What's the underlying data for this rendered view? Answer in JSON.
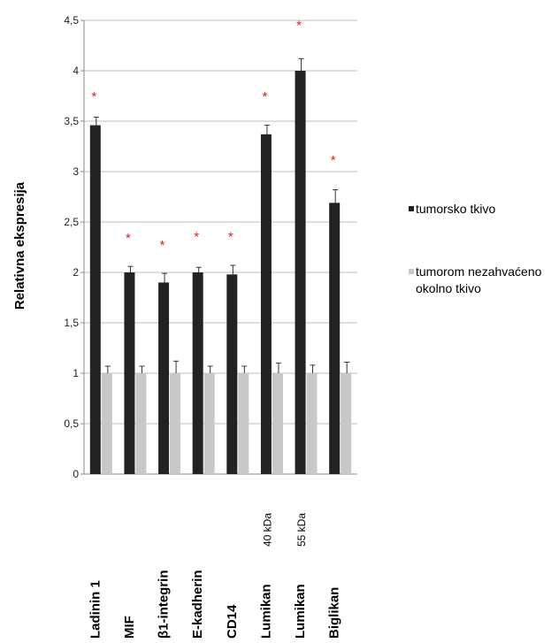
{
  "chart_data": {
    "type": "bar",
    "ylabel": "Relativna ekspresija",
    "xlabel": "",
    "ylim": [
      0,
      4.5
    ],
    "yticks": [
      "0",
      "0,5",
      "1",
      "1,5",
      "2",
      "2,5",
      "3",
      "3,5",
      "4",
      "4,5"
    ],
    "grid": true,
    "legend_position": "right",
    "categories": [
      {
        "label": "Ladinin 1",
        "sub": ""
      },
      {
        "label": "MIF",
        "sub": ""
      },
      {
        "label": "β1-integrin",
        "sub": ""
      },
      {
        "label": "E-kadherin",
        "sub": ""
      },
      {
        "label": "CD14",
        "sub": ""
      },
      {
        "label": "Lumikan",
        "sub": "40 kDa"
      },
      {
        "label": "Lumikan",
        "sub": "55 kDa"
      },
      {
        "label": "Biglikan",
        "sub": ""
      }
    ],
    "series": [
      {
        "name": "tumorsko tkivo",
        "color": "#222222",
        "values": [
          3.46,
          2.0,
          1.9,
          2.0,
          1.98,
          3.37,
          4.0,
          2.69
        ],
        "errors": [
          0.08,
          0.06,
          0.09,
          0.05,
          0.09,
          0.09,
          0.12,
          0.13
        ]
      },
      {
        "name": "tumorom nezahvaćeno okolno tkivo",
        "name_lines": [
          "tumorom nezahvaćeno",
          "okolno tkivo"
        ],
        "color": "#c8c8c8",
        "values": [
          1.0,
          1.0,
          1.0,
          1.0,
          1.0,
          1.0,
          1.0,
          1.0
        ],
        "errors": [
          0.07,
          0.07,
          0.12,
          0.07,
          0.07,
          0.1,
          0.08,
          0.11
        ]
      }
    ],
    "significance": {
      "symbol": "*",
      "color": "#e02020",
      "y_values": [
        3.77,
        2.37,
        2.3,
        2.38,
        2.38,
        3.77,
        4.48,
        3.14
      ]
    }
  }
}
